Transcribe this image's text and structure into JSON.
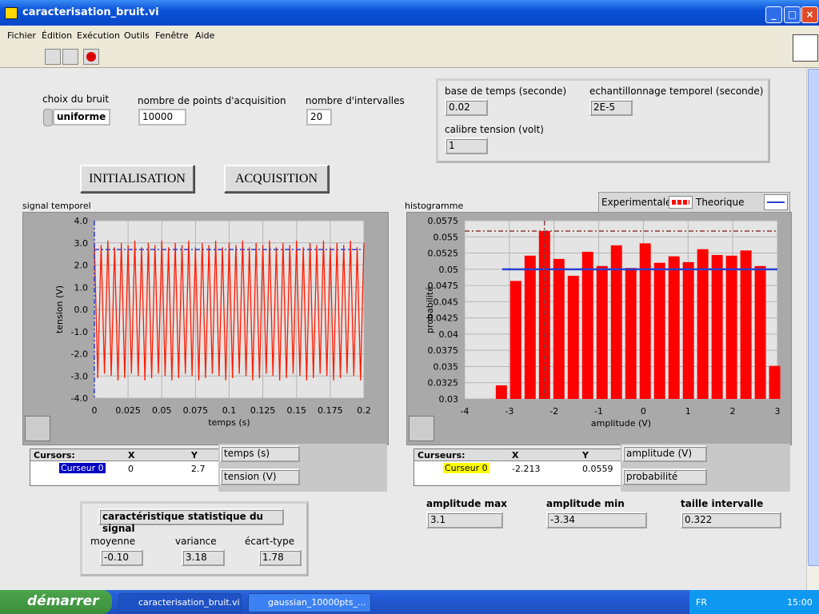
{
  "window": {
    "title": "caracterisation_bruit.vi"
  },
  "menu": [
    "Fichier",
    "Édition",
    "Exécution",
    "Outils",
    "Fenêtre",
    "Aide"
  ],
  "controls": {
    "noise": {
      "label": "choix du bruit",
      "value": "uniforme"
    },
    "points": {
      "label": "nombre de points d'acquisition",
      "value": "10000"
    },
    "intervals": {
      "label": "nombre d'intervalles",
      "value": "20"
    }
  },
  "acquisition": {
    "time_base": {
      "label": "base de temps (seconde)",
      "value": "0.02"
    },
    "sampling": {
      "label": "echantillonnage temporel (seconde)",
      "value": "2E-5"
    },
    "range": {
      "label": "calibre tension (volt)",
      "value": "1"
    }
  },
  "buttons": [
    "INITIALISATION",
    "ACQUISITION"
  ],
  "chart_data": [
    {
      "type": "line",
      "title": "signal temporel",
      "xlabel": "temps (s)",
      "ylabel": "tension (V)",
      "xlim": [
        0,
        0.2
      ],
      "ylim": [
        -4,
        4
      ],
      "xticks": [
        0,
        0.025,
        0.05,
        0.075,
        0.1,
        0.125,
        0.15,
        0.175,
        0.2
      ],
      "yticks": [
        {
          "value": 4,
          "label": "4.0"
        },
        {
          "value": 3,
          "label": "3.0"
        },
        {
          "value": 2,
          "label": "2.0"
        },
        {
          "value": 1,
          "label": "1.0"
        },
        {
          "value": 0,
          "label": "0.0"
        },
        {
          "value": -1,
          "label": "-1.0"
        },
        {
          "value": -2,
          "label": "-2.0"
        },
        {
          "value": -3,
          "label": "-3.0"
        },
        {
          "value": -4,
          "label": "-4.0"
        }
      ],
      "grid": true,
      "series": [
        {
          "color": "#ff1a00",
          "x": [
            0,
            0.0025,
            0.005,
            0.0075,
            0.01,
            0.0125,
            0.015,
            0.0175,
            0.02,
            0.0225,
            0.025,
            0.0275,
            0.03,
            0.0325,
            0.035,
            0.0375,
            0.04,
            0.0425,
            0.045,
            0.0475,
            0.05,
            0.0525,
            0.055,
            0.0575,
            0.06,
            0.0625,
            0.065,
            0.0675,
            0.07,
            0.0725,
            0.075,
            0.0775,
            0.08,
            0.0825,
            0.085,
            0.0875,
            0.09,
            0.0925,
            0.095,
            0.0975,
            0.1,
            0.1025,
            0.105,
            0.1075,
            0.11,
            0.1125,
            0.115,
            0.1175,
            0.12,
            0.1225,
            0.125,
            0.1275,
            0.13,
            0.1325,
            0.135,
            0.1375,
            0.14,
            0.1425,
            0.145,
            0.1475,
            0.15,
            0.1525,
            0.155,
            0.1575,
            0.16,
            0.1625,
            0.165,
            0.1675,
            0.17,
            0.1725,
            0.175,
            0.1775,
            0.18,
            0.1825,
            0.185,
            0.1875,
            0.19,
            0.1925,
            0.195,
            0.1975,
            0.2
          ],
          "values": [
            3.0,
            -3.1,
            2.9,
            -2.9,
            3.1,
            -3.0,
            2.8,
            -3.2,
            3.0,
            -3.1,
            2.9,
            -2.9,
            3.1,
            -3.0,
            2.8,
            -3.2,
            3.0,
            -3.1,
            2.9,
            -2.9,
            3.1,
            -3.0,
            2.8,
            -3.2,
            3.0,
            -3.1,
            2.9,
            -2.9,
            3.1,
            -3.0,
            2.8,
            -3.2,
            3.0,
            -3.1,
            2.9,
            -2.9,
            3.1,
            -3.0,
            2.8,
            -3.2,
            3.0,
            -3.1,
            2.9,
            -2.9,
            3.1,
            -3.0,
            2.8,
            -3.2,
            3.0,
            -3.1,
            2.9,
            -2.9,
            3.1,
            -3.0,
            2.8,
            -3.2,
            3.0,
            -3.1,
            2.9,
            -2.9,
            3.1,
            -3.0,
            2.8,
            -3.2,
            3.0,
            -3.1,
            2.9,
            -2.9,
            3.1,
            -3.0,
            2.8,
            -3.2,
            3.0,
            -3.1,
            2.9,
            -2.9,
            3.1,
            -3.0,
            2.8,
            -3.2,
            3.0
          ]
        }
      ],
      "cursor": {
        "name": "Curseur 0",
        "x": 0,
        "y": 2.7,
        "color": "#2a3fd0"
      },
      "cursor_header": [
        "Cursors:",
        "X",
        "Y"
      ]
    },
    {
      "type": "histogram",
      "title": "histogramme",
      "xlabel": "amplitude (V)",
      "ylabel": "probabilité",
      "xlim": [
        -4,
        3
      ],
      "ylim": [
        0.03,
        0.0575
      ],
      "xticks": [
        -4,
        -3,
        -2,
        -1,
        0,
        1,
        2,
        3
      ],
      "yticks": [
        0.03,
        0.0325,
        0.035,
        0.0375,
        0.04,
        0.0425,
        0.045,
        0.0475,
        0.05,
        0.0525,
        0.055,
        0.0575
      ],
      "grid": true,
      "series": [
        {
          "name": "Experimentale",
          "color": "#ff0000",
          "bins": [
            -3.34,
            -3.018,
            -2.696,
            -2.374,
            -2.052,
            -1.73,
            -1.408,
            -1.086,
            -0.764,
            -0.442,
            -0.12,
            0.202,
            0.524,
            0.846,
            1.168,
            1.49,
            1.812,
            2.134,
            2.456,
            2.778,
            3.1
          ],
          "values": [
            0.0321,
            0.0482,
            0.0521,
            0.0559,
            0.0516,
            0.049,
            0.0527,
            0.0505,
            0.0537,
            0.0502,
            0.054,
            0.051,
            0.052,
            0.0511,
            0.0531,
            0.0522,
            0.0521,
            0.0529,
            0.0505,
            0.0351
          ]
        },
        {
          "name": "Theorique",
          "color": "#2a3fd0",
          "x": [
            -3.16,
            3
          ],
          "values": [
            0.05,
            0.05
          ]
        }
      ],
      "cursor": {
        "name": "Curseur 0",
        "x": -2.213,
        "y": 0.0559,
        "color": "#8b3a3a"
      },
      "cursor_header": [
        "Curseurs:",
        "X",
        "Y"
      ]
    }
  ],
  "statistics": {
    "title": "caractéristique statistique du signal",
    "mean": {
      "label": "moyenne",
      "value": "-0.10"
    },
    "variance": {
      "label": "variance",
      "value": "3.18"
    },
    "std": {
      "label": "écart-type",
      "value": "1.78"
    }
  },
  "histogram_info": {
    "max": {
      "label": "amplitude max",
      "value": "3.1"
    },
    "min": {
      "label": "amplitude min",
      "value": "-3.34"
    },
    "width": {
      "label": "taille intervalle",
      "value": "0.322"
    }
  },
  "taskbar": {
    "start": "démarrer",
    "tasks": [
      "caracterisation_bruit.vi",
      "gaussian_10000pts_..."
    ],
    "lang": "FR",
    "clock": "15:00"
  }
}
